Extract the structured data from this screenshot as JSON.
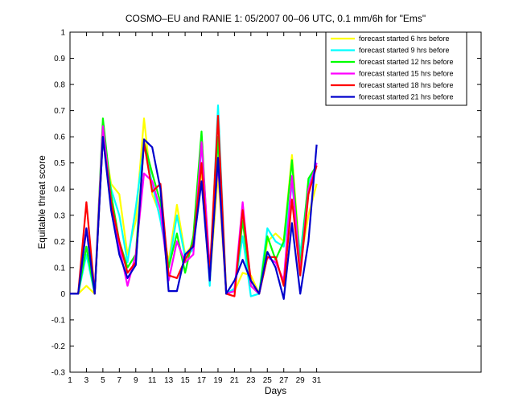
{
  "chart_data": {
    "type": "line",
    "title": "COSMO–EU and RANIE 1: 05/2007 00–06 UTC, 0.1 mm/6h for \"Ems\"",
    "xlabel": "Days",
    "ylabel": "Equitable threat score",
    "xlim": [
      1,
      51
    ],
    "ylim": [
      -0.3,
      1
    ],
    "xticks": [
      1,
      3,
      5,
      7,
      9,
      11,
      13,
      15,
      17,
      19,
      21,
      23,
      25,
      27,
      29,
      31
    ],
    "yticks": [
      -0.3,
      -0.2,
      -0.1,
      0,
      0.1,
      0.2,
      0.3,
      0.4,
      0.5,
      0.6,
      0.7,
      0.8,
      0.9,
      1
    ],
    "legend_position": "top-right",
    "x": [
      1,
      2,
      3,
      4,
      5,
      6,
      7,
      8,
      9,
      10,
      11,
      12,
      13,
      14,
      15,
      16,
      17,
      18,
      19,
      20,
      21,
      22,
      23,
      24,
      25,
      26,
      27,
      28,
      29,
      30,
      31
    ],
    "series": [
      {
        "name": "forecast started 6 hrs before",
        "color": "#ffff00",
        "values": [
          0,
          0,
          0.03,
          0,
          0.61,
          0.42,
          0.38,
          0.15,
          0.28,
          0.67,
          0.38,
          0.3,
          0.12,
          0.34,
          0.15,
          0.19,
          0.48,
          0.05,
          0.46,
          0,
          0.01,
          0.08,
          0.07,
          0,
          0.2,
          0.23,
          0.2,
          0.53,
          0.12,
          0.3,
          0.42
        ]
      },
      {
        "name": "forecast started 9 hrs before",
        "color": "#00ffff",
        "values": [
          0,
          0,
          0.15,
          0,
          0.6,
          0.4,
          0.3,
          0.12,
          0.33,
          0.57,
          0.42,
          0.28,
          0.1,
          0.3,
          0.14,
          0.17,
          0.58,
          0.03,
          0.72,
          0,
          0.02,
          0.22,
          -0.01,
          0,
          0.25,
          0.2,
          0.18,
          0.42,
          0.15,
          0.42,
          0.5
        ]
      },
      {
        "name": "forecast started 12 hrs before",
        "color": "#00ff00",
        "values": [
          0,
          0,
          0.18,
          0,
          0.67,
          0.38,
          0.2,
          0.1,
          0.15,
          0.58,
          0.46,
          0.35,
          0.1,
          0.23,
          0.08,
          0.22,
          0.62,
          0.05,
          0.6,
          0,
          0.01,
          0.28,
          0.03,
          0,
          0.22,
          0.13,
          0.2,
          0.51,
          0.1,
          0.44,
          0.49
        ]
      },
      {
        "name": "forecast started 15 hrs before",
        "color": "#ff00ff",
        "values": [
          0,
          0,
          0.25,
          0,
          0.64,
          0.35,
          0.18,
          0.03,
          0.15,
          0.46,
          0.43,
          0.32,
          0.05,
          0.2,
          0.12,
          0.15,
          0.58,
          0.1,
          0.5,
          0,
          0.01,
          0.35,
          0.03,
          0,
          0.14,
          0.12,
          0.05,
          0.45,
          0.08,
          0.4,
          0.5
        ]
      },
      {
        "name": "forecast started 18 hrs before",
        "color": "#ff0000",
        "values": [
          0,
          0,
          0.35,
          0,
          0.6,
          0.35,
          0.2,
          0.08,
          0.12,
          0.58,
          0.39,
          0.42,
          0.07,
          0.06,
          0.13,
          0.19,
          0.5,
          0.07,
          0.68,
          0,
          -0.01,
          0.32,
          0.05,
          0,
          0.14,
          0.14,
          0.03,
          0.36,
          0.07,
          0.38,
          0.49
        ]
      },
      {
        "name": "forecast started 21 hrs before",
        "color": "#0000cc",
        "values": [
          0,
          0,
          0.25,
          0,
          0.6,
          0.32,
          0.15,
          0.06,
          0.11,
          0.59,
          0.56,
          0.4,
          0.01,
          0.01,
          0.15,
          0.18,
          0.43,
          0.05,
          0.52,
          0,
          0.05,
          0.13,
          0.05,
          0,
          0.16,
          0.1,
          -0.02,
          0.27,
          0,
          0.2,
          0.57
        ]
      }
    ]
  }
}
